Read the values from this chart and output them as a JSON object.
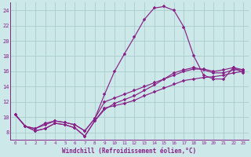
{
  "background_color": "#cce8e8",
  "grid_color": "#aacccc",
  "line_color": "#882288",
  "xlabel": "Windchill (Refroidissement éolien,°C)",
  "xlim": [
    -0.5,
    23.5
  ],
  "ylim": [
    7,
    25
  ],
  "xticks": [
    0,
    1,
    2,
    3,
    4,
    5,
    6,
    7,
    8,
    9,
    10,
    11,
    12,
    13,
    14,
    15,
    16,
    17,
    18,
    19,
    20,
    21,
    22,
    23
  ],
  "yticks": [
    8,
    10,
    12,
    14,
    16,
    18,
    20,
    22,
    24
  ],
  "figsize": [
    3.2,
    2.0
  ],
  "dpi": 100,
  "series": [
    [
      10.3,
      8.8,
      8.2,
      8.5,
      9.2,
      9.0,
      8.6,
      7.5,
      9.5,
      11.2,
      11.5,
      11.8,
      12.2,
      12.8,
      13.3,
      13.8,
      14.3,
      14.8,
      15.0,
      15.2,
      15.3,
      15.5,
      15.8,
      16.0
    ],
    [
      10.3,
      8.8,
      8.2,
      8.5,
      9.2,
      9.0,
      8.6,
      7.5,
      9.5,
      11.0,
      11.8,
      12.3,
      12.8,
      13.5,
      14.2,
      15.0,
      15.8,
      16.2,
      16.5,
      16.2,
      15.8,
      15.8,
      16.2,
      16.2
    ],
    [
      10.3,
      8.8,
      8.5,
      9.0,
      9.5,
      9.3,
      9.0,
      8.2,
      9.8,
      12.0,
      12.5,
      13.0,
      13.5,
      14.0,
      14.5,
      15.0,
      15.5,
      16.0,
      16.3,
      16.3,
      16.0,
      16.2,
      16.5,
      16.2
    ],
    [
      10.3,
      8.8,
      8.5,
      9.2,
      9.5,
      9.3,
      9.0,
      8.2,
      9.8,
      13.0,
      16.0,
      18.3,
      20.5,
      22.8,
      24.3,
      24.5,
      24.0,
      21.8,
      18.0,
      15.5,
      15.0,
      15.0,
      16.5,
      15.8
    ]
  ]
}
